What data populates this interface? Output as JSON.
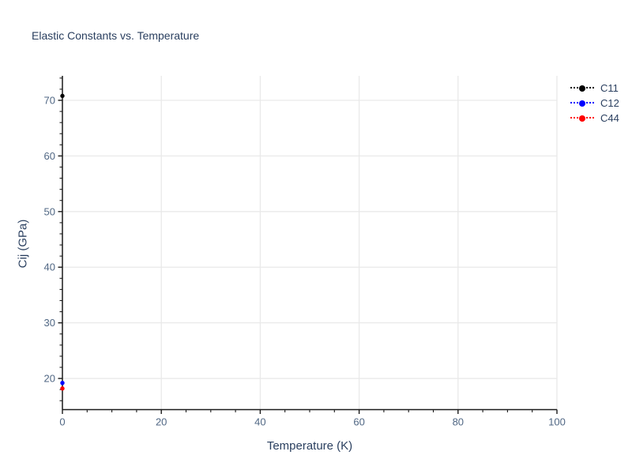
{
  "chart_data": {
    "type": "scatter",
    "title": "Elastic Constants vs. Temperature",
    "xlabel": "Temperature (K)",
    "ylabel": "Cij (GPa)",
    "xlim": [
      0,
      100
    ],
    "ylim": [
      14.4,
      74.4
    ],
    "x_major_ticks": [
      0,
      20,
      40,
      60,
      80,
      100
    ],
    "x_minor_step": 5,
    "y_major_ticks": [
      20,
      30,
      40,
      50,
      60,
      70
    ],
    "y_minor_step": 2,
    "grid": true,
    "legend_position": "top-right",
    "series": [
      {
        "name": "C11",
        "color": "#000000",
        "line_style": "dot",
        "marker": "circle",
        "x": [
          0
        ],
        "y": [
          70.8
        ]
      },
      {
        "name": "C12",
        "color": "#0000ff",
        "line_style": "dot",
        "marker": "circle",
        "x": [
          0
        ],
        "y": [
          19.2
        ]
      },
      {
        "name": "C44",
        "color": "#ff0000",
        "line_style": "dot",
        "marker": "circle",
        "x": [
          0
        ],
        "y": [
          18.2
        ]
      }
    ]
  },
  "colors": {
    "title_text": "#2a3f5f",
    "tick_text": "#506784",
    "grid_line": "#e9e9e9",
    "axis_line": "#1a1a1a",
    "background": "#ffffff"
  }
}
